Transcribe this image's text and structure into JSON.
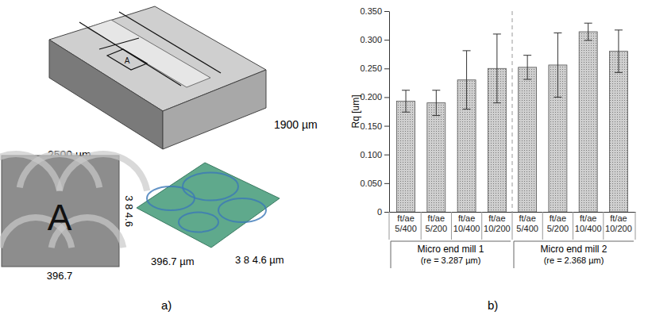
{
  "chart_data": {
    "type": "bar",
    "y_label": "Rq [um]",
    "categories": [
      "ft/ae 5/400",
      "ft/ae 5/200",
      "ft/ae 10/400",
      "ft/ae 10/200",
      "ft/ae 5/400",
      "ft/ae 5/200",
      "ft/ae 10/400",
      "ft/ae 10/200"
    ],
    "values": [
      0.193,
      0.19,
      0.23,
      0.25,
      0.252,
      0.256,
      0.314,
      0.28
    ],
    "errors": [
      0.019,
      0.022,
      0.051,
      0.06,
      0.021,
      0.056,
      0.015,
      0.037
    ],
    "color": "#cfcfcf",
    "ylim": [
      0,
      0.35
    ],
    "yticks": [
      0,
      {
        "value": 0.05,
        "label": "0.050"
      },
      {
        "value": 0.1,
        "label": "0.100"
      },
      {
        "value": 0.15,
        "label": "0.150"
      },
      {
        "value": 0.2,
        "label": "0.200"
      },
      {
        "value": 0.25,
        "label": "0.250"
      },
      {
        "value": 0.3,
        "label": "0.300"
      },
      {
        "value": 0.35,
        "label": "0.350"
      }
    ],
    "grid": false,
    "groups": [
      {
        "label": "Micro end mill 1",
        "note": "(re = 3.287 µm)"
      },
      {
        "label": "Micro end mill 2",
        "note": "(re = 2.368 µm)"
      }
    ],
    "panel_label": "b)"
  },
  "figure_a": {
    "block_width": "2500 µm",
    "block_depth": "1900 µm",
    "region": "A",
    "photo_width": "396.7",
    "photo_height": "3 8 4.6",
    "render_width": "396.7 µm",
    "render_height": "3 8 4.6 µm",
    "panel_label": "a)"
  }
}
